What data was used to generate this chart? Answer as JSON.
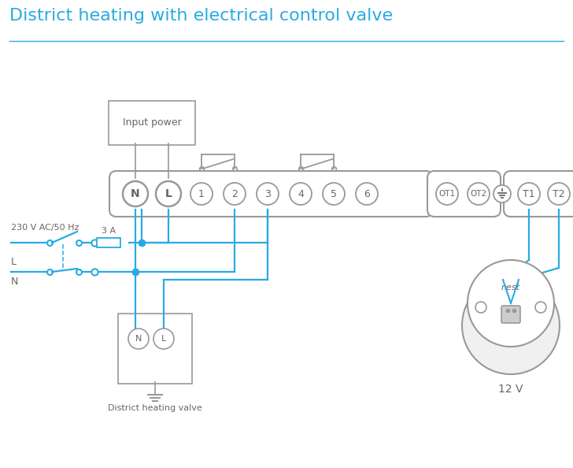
{
  "title": "District heating with electrical control valve",
  "title_color": "#29abe2",
  "title_fontsize": 16,
  "bg_color": "#ffffff",
  "line_color": "#29abe2",
  "gray": "#999999",
  "dark_gray": "#666666",
  "terminal_labels_main": [
    "N",
    "L",
    "1",
    "2",
    "3",
    "4",
    "5",
    "6"
  ],
  "ot_labels": [
    "OT1",
    "OT2"
  ],
  "t_labels": [
    "T1",
    "T2"
  ],
  "input_power_label": "Input power",
  "valve_label": "District heating valve",
  "nest_label": "12 V",
  "fuse_label": "3 A",
  "voltage_label": "230 V AC/50 Hz",
  "L_label": "L",
  "N_label": "N",
  "figw": 7.28,
  "figh": 5.94,
  "dpi": 100
}
